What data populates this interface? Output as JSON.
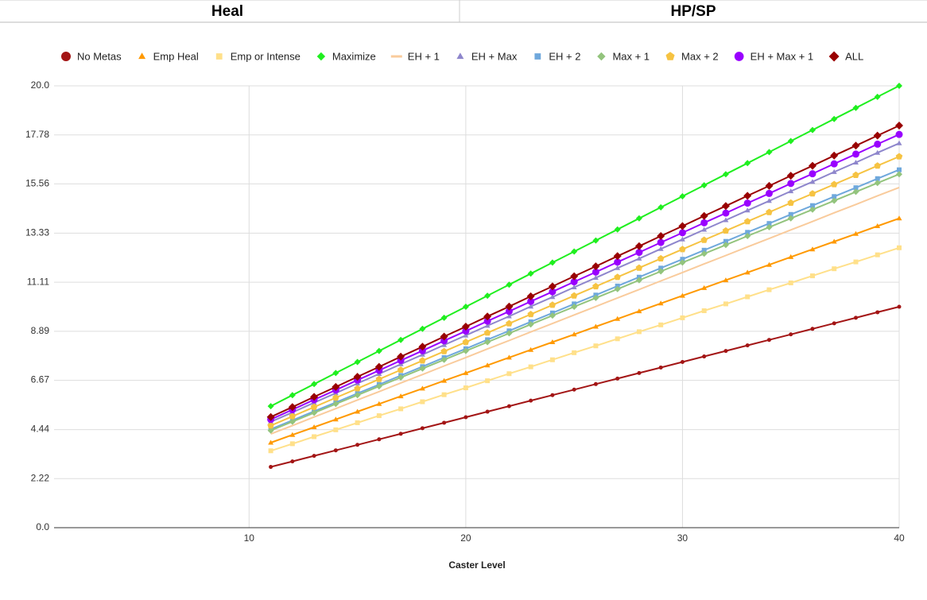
{
  "header": [
    "Heal",
    "HP/SP"
  ],
  "chart_data": {
    "type": "line",
    "x_label": "Caster Level",
    "xlim": [
      1,
      40
    ],
    "xticks": [
      10,
      20,
      30,
      40
    ],
    "ylim": [
      0,
      20
    ],
    "yticks": [
      {
        "value": 0,
        "label": "0.0"
      },
      2.22,
      4.44,
      6.67,
      8.89,
      11.11,
      13.33,
      15.56,
      17.78,
      {
        "value": 20,
        "label": "20.0"
      }
    ],
    "grid": true,
    "legend": "top",
    "x": [
      11,
      12,
      13,
      14,
      15,
      16,
      17,
      18,
      19,
      20,
      21,
      22,
      23,
      24,
      25,
      26,
      27,
      28,
      29,
      30,
      31,
      32,
      33,
      34,
      35,
      36,
      37,
      38,
      39,
      40
    ],
    "series": [
      {
        "name": "No Metas",
        "color": "#a31515",
        "marker": "circle",
        "values": [
          2.75,
          3,
          3.25,
          3.5,
          3.75,
          4,
          4.25,
          4.5,
          4.75,
          5,
          5.25,
          5.5,
          5.75,
          6,
          6.25,
          6.5,
          6.75,
          7,
          7.25,
          7.5,
          7.75,
          8,
          8.25,
          8.5,
          8.75,
          9,
          9.25,
          9.5,
          9.75,
          10
        ]
      },
      {
        "name": "Emp Heal",
        "color": "#ff9900",
        "marker": "triangle",
        "values": [
          3.85,
          4.2,
          4.55,
          4.9,
          5.25,
          5.6,
          5.95,
          6.3,
          6.65,
          7,
          7.35,
          7.7,
          8.05,
          8.4,
          8.75,
          9.1,
          9.45,
          9.8,
          10.15,
          10.5,
          10.85,
          11.2,
          11.55,
          11.9,
          12.25,
          12.6,
          12.95,
          13.3,
          13.65,
          14
        ]
      },
      {
        "name": "Emp or Intense",
        "color": "#ffe08a",
        "marker": "square",
        "values": [
          3.48,
          3.8,
          4.12,
          4.43,
          4.75,
          5.07,
          5.38,
          5.7,
          6.02,
          6.33,
          6.65,
          6.97,
          7.28,
          7.6,
          7.92,
          8.23,
          8.55,
          8.87,
          9.18,
          9.5,
          9.82,
          10.13,
          10.45,
          10.77,
          11.08,
          11.4,
          11.72,
          12.03,
          12.35,
          12.67
        ]
      },
      {
        "name": "Maximize",
        "color": "#1fef1f",
        "marker": "diamond",
        "values": [
          5.5,
          6,
          6.5,
          7,
          7.5,
          8,
          8.5,
          9,
          9.5,
          10,
          10.5,
          11,
          11.5,
          12,
          12.5,
          13,
          13.5,
          14,
          14.5,
          15,
          15.5,
          16,
          16.5,
          17,
          17.5,
          18,
          18.5,
          19,
          19.5,
          20
        ]
      },
      {
        "name": "EH + 1",
        "color": "#f9cb9c",
        "marker": "none",
        "values": [
          4.24,
          4.62,
          5.01,
          5.39,
          5.78,
          6.16,
          6.55,
          6.93,
          7.32,
          7.7,
          8.09,
          8.47,
          8.86,
          9.24,
          9.63,
          10.01,
          10.4,
          10.78,
          11.17,
          11.55,
          11.94,
          12.32,
          12.71,
          13.09,
          13.48,
          13.86,
          14.25,
          14.63,
          15.02,
          15.4
        ]
      },
      {
        "name": "EH + Max",
        "color": "#8e86cc",
        "marker": "triangle",
        "values": [
          4.79,
          5.22,
          5.66,
          6.09,
          6.53,
          6.96,
          7.4,
          7.83,
          8.27,
          8.7,
          9.14,
          9.57,
          10.01,
          10.44,
          10.88,
          11.31,
          11.75,
          12.18,
          12.62,
          13.05,
          13.49,
          13.92,
          14.36,
          14.79,
          15.23,
          15.66,
          16.1,
          16.53,
          16.97,
          17.4
        ]
      },
      {
        "name": "EH + 2",
        "color": "#6fa8dc",
        "marker": "square",
        "values": [
          4.46,
          4.86,
          5.27,
          5.67,
          6.08,
          6.48,
          6.89,
          7.29,
          7.7,
          8.1,
          8.51,
          8.91,
          9.32,
          9.72,
          10.13,
          10.53,
          10.94,
          11.34,
          11.75,
          12.15,
          12.56,
          12.96,
          13.37,
          13.77,
          14.18,
          14.58,
          14.99,
          15.39,
          15.8,
          16.2
        ]
      },
      {
        "name": "Max + 1",
        "color": "#93c47d",
        "marker": "diamond",
        "values": [
          4.4,
          4.8,
          5.2,
          5.6,
          6,
          6.4,
          6.8,
          7.2,
          7.6,
          8,
          8.4,
          8.8,
          9.2,
          9.6,
          10,
          10.4,
          10.8,
          11.2,
          11.6,
          12,
          12.4,
          12.8,
          13.2,
          13.6,
          14,
          14.4,
          14.8,
          15.2,
          15.6,
          16
        ]
      },
      {
        "name": "Max + 2",
        "color": "#f6c342",
        "marker": "pentagon",
        "values": [
          4.62,
          5.04,
          5.46,
          5.88,
          6.3,
          6.72,
          7.14,
          7.56,
          7.98,
          8.4,
          8.82,
          9.24,
          9.66,
          10.08,
          10.5,
          10.92,
          11.34,
          11.76,
          12.18,
          12.6,
          13.02,
          13.44,
          13.86,
          14.28,
          14.7,
          15.12,
          15.54,
          15.96,
          16.38,
          16.8
        ]
      },
      {
        "name": "EH + Max + 1",
        "color": "#9900ff",
        "marker": "bigcircle",
        "values": [
          4.9,
          5.34,
          5.79,
          6.23,
          6.68,
          7.12,
          7.57,
          8.01,
          8.46,
          8.9,
          9.35,
          9.79,
          10.24,
          10.68,
          11.13,
          11.57,
          12.02,
          12.46,
          12.91,
          13.35,
          13.8,
          14.24,
          14.69,
          15.13,
          15.58,
          16.02,
          16.47,
          16.91,
          17.36,
          17.8
        ]
      },
      {
        "name": "ALL",
        "color": "#990000",
        "marker": "bigdiamond",
        "values": [
          5.01,
          5.46,
          5.92,
          6.37,
          6.83,
          7.28,
          7.74,
          8.19,
          8.65,
          9.1,
          9.56,
          10.01,
          10.47,
          10.92,
          11.38,
          11.83,
          12.29,
          12.74,
          13.2,
          13.65,
          14.11,
          14.56,
          15.02,
          15.47,
          15.93,
          16.38,
          16.84,
          17.29,
          17.75,
          18.2
        ]
      }
    ]
  }
}
